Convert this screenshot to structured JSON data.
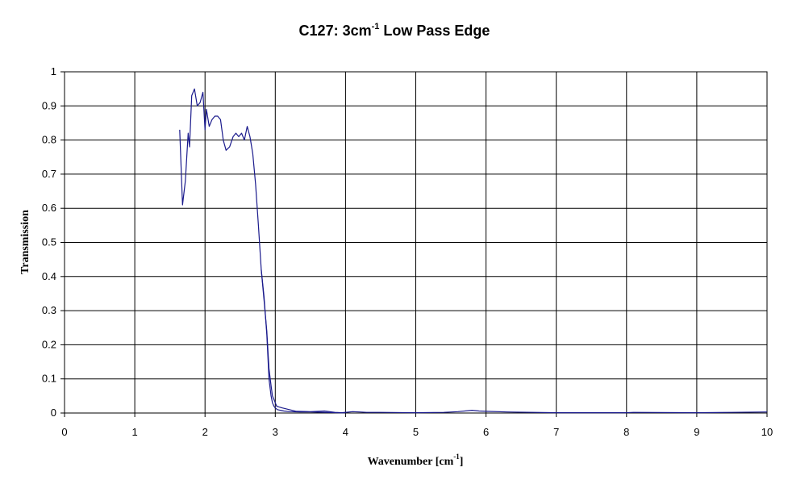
{
  "chart_data": {
    "type": "line",
    "title": "C127: 3cm-1 Low Pass Edge",
    "title_parts": {
      "main": "C127: 3cm",
      "sup": "-1",
      "rest": " Low Pass Edge"
    },
    "xlabel": "Wavenumber [cm-1]",
    "xlabel_parts": {
      "main": "Wavenumber [cm",
      "sup": "-1",
      "rest": "]"
    },
    "ylabel": "Transmission",
    "xlim": [
      0,
      10
    ],
    "ylim": [
      0,
      1
    ],
    "x_ticks": [
      "0",
      "1",
      "2",
      "3",
      "4",
      "5",
      "6",
      "7",
      "8",
      "9",
      "10"
    ],
    "y_ticks": [
      "0",
      "0.1",
      "0.2",
      "0.3",
      "0.4",
      "0.5",
      "0.6",
      "0.7",
      "0.8",
      "0.9",
      "1"
    ],
    "grid": true,
    "series_color": "#1a1a8c",
    "series": [
      {
        "x": [
          1.64,
          1.68,
          1.72,
          1.76,
          1.78,
          1.81,
          1.85,
          1.89,
          1.93,
          1.97,
          2.0,
          2.02,
          2.06,
          2.1,
          2.14,
          2.18,
          2.22,
          2.26,
          2.3,
          2.35,
          2.4,
          2.44,
          2.48,
          2.52,
          2.56,
          2.6,
          2.64,
          2.68,
          2.72,
          2.76,
          2.8,
          2.84,
          2.88,
          2.91,
          2.94,
          2.96,
          2.98,
          3.0,
          3.02,
          3.05,
          3.1,
          3.2,
          3.3,
          3.5,
          3.7,
          3.85,
          3.95,
          4.1,
          4.2,
          4.3,
          4.5,
          5.0,
          5.4,
          5.6,
          5.8,
          5.9,
          6.0,
          6.3,
          7.0,
          8.0,
          8.1,
          9.0,
          9.5,
          10.0
        ],
        "y": [
          0.83,
          0.61,
          0.68,
          0.82,
          0.78,
          0.93,
          0.95,
          0.9,
          0.91,
          0.94,
          0.83,
          0.89,
          0.84,
          0.86,
          0.87,
          0.87,
          0.86,
          0.8,
          0.77,
          0.78,
          0.81,
          0.82,
          0.81,
          0.82,
          0.8,
          0.84,
          0.81,
          0.76,
          0.67,
          0.55,
          0.42,
          0.33,
          0.24,
          0.13,
          0.08,
          0.05,
          0.04,
          0.03,
          0.02,
          0.018,
          0.015,
          0.01,
          0.005,
          0.004,
          0.006,
          0.002,
          0.001,
          0.004,
          0.003,
          0.002,
          0.002,
          0.001,
          0.002,
          0.004,
          0.008,
          0.006,
          0.005,
          0.003,
          0.001,
          0.001,
          0.002,
          0.001,
          0.002,
          0.003
        ]
      },
      {
        "x": [
          2.8,
          2.84,
          2.88,
          2.91,
          2.94,
          2.96,
          2.98,
          3.0,
          3.03,
          3.07,
          3.12,
          3.2,
          3.35,
          3.5,
          3.7,
          3.9,
          4.0
        ],
        "y": [
          0.42,
          0.34,
          0.23,
          0.1,
          0.05,
          0.03,
          0.02,
          0.015,
          0.01,
          0.008,
          0.006,
          0.004,
          0.003,
          0.003,
          0.002,
          0.001,
          0.001
        ]
      }
    ]
  }
}
